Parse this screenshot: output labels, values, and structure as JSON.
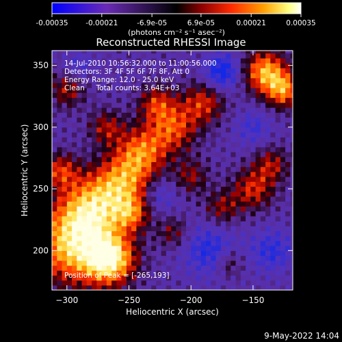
{
  "colorbar": {
    "ticks": [
      "-0.00035",
      "-0.00021",
      "-6.9e-05",
      "6.9e-05",
      "0.00021",
      "0.00035"
    ],
    "tick_values": [
      -0.00035,
      -0.00021,
      -6.9e-05,
      6.9e-05,
      0.00021,
      0.00035
    ],
    "range": [
      -0.00035,
      0.00035
    ],
    "units_label": "(photons cm⁻² s⁻¹ asec⁻²)",
    "colors": [
      "#0000ff",
      "#6a2bb5",
      "#000000",
      "#8b0000",
      "#ff2a00",
      "#ffa000",
      "#ffff80",
      "#ffffff"
    ]
  },
  "chart_data": {
    "type": "heatmap",
    "title": "Reconstructed RHESSI Image",
    "xlabel": "Heliocentric X (arcsec)",
    "ylabel": "Heliocentric Y (arcsec)",
    "xlim": [
      -312,
      -118
    ],
    "ylim": [
      168,
      362
    ],
    "x_ticks": [
      -300,
      -250,
      -200,
      -150
    ],
    "y_ticks": [
      200,
      250,
      300,
      350
    ],
    "grid": false,
    "info_lines": [
      "14-Jul-2010 10:56:32.000 to 11:00:56.000",
      "Detectors: 3F 4F 5F 6F 7F 8F, Att 0",
      "Energy Range: 12.0 - 25.0 keV",
      "Clean     Total counts: 3.64E+03"
    ],
    "peak_label": "Position of Peak = [-265,193]",
    "peak": [
      -265,
      193
    ]
  },
  "footer": {
    "timestamp": "9-May-2022 14:04"
  }
}
